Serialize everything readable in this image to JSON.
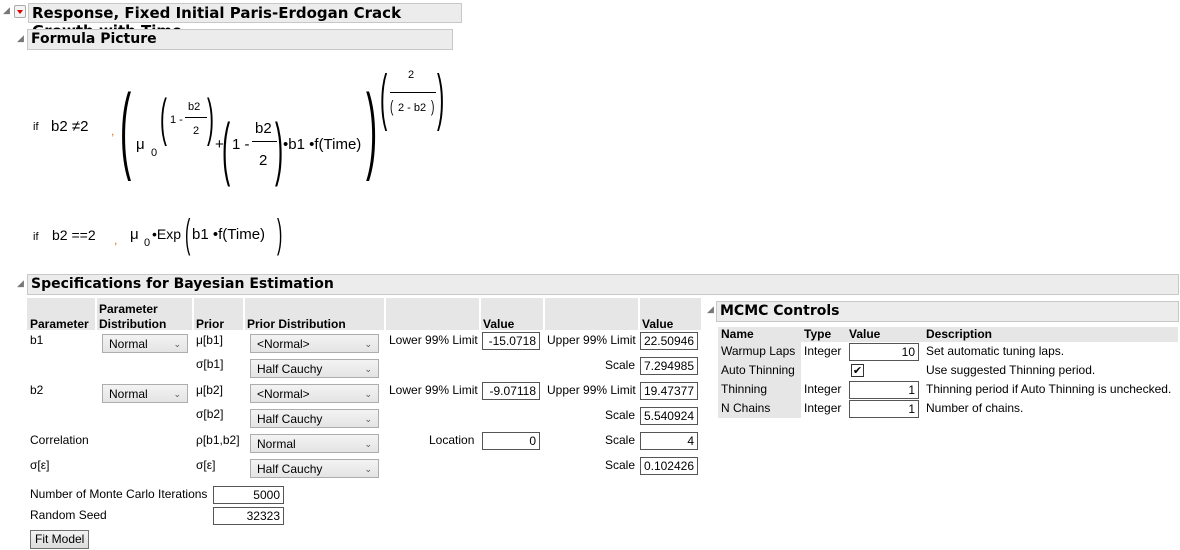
{
  "report": {
    "title": "Response, Fixed Initial Paris-Erdogan Crack Growth with Time"
  },
  "formula": {
    "title": "Formula Picture",
    "line1": {
      "if": "if",
      "cond": "b2 ≠2",
      "comma": ",",
      "mu": "μ",
      "sub0": "0",
      "one_minus_small": "1 -",
      "b2": "b2",
      "two": "2",
      "plus": "+",
      "one_minus": "1 -",
      "mult": "•b1 •f(Time)",
      "exp_num": "2",
      "exp_den": "2 - b2"
    },
    "line2": {
      "if": "if",
      "cond": "b2 ==2",
      "comma": ",",
      "mu": "μ",
      "sub0": "0",
      "exp": "•Exp",
      "arg": "b1 •f(Time)"
    }
  },
  "spec": {
    "title": "Specifications for Bayesian Estimation",
    "headers": {
      "parameter": "Parameter",
      "param_dist_1": "Parameter",
      "param_dist_2": "Distribution",
      "prior": "Prior",
      "prior_dist": "Prior Distribution",
      "value1": "Value",
      "value2": "Value"
    },
    "rows": [
      {
        "param": "b1",
        "pdist": "Normal",
        "prior": "μ[b1]",
        "prior_dist": "<Normal>",
        "l1": "Lower 99% Limit",
        "v1": "-15.0718",
        "l2": "Upper 99% Limit",
        "v2": "22.50946"
      },
      {
        "param": "",
        "prior": "σ[b1]",
        "prior_dist": "Half Cauchy",
        "l2": "Scale",
        "v2": "7.294985"
      },
      {
        "param": "b2",
        "pdist": "Normal",
        "prior": "μ[b2]",
        "prior_dist": "<Normal>",
        "l1": "Lower 99% Limit",
        "v1": "-9.07118",
        "l2": "Upper 99% Limit",
        "v2": "19.47377"
      },
      {
        "param": "",
        "prior": "σ[b2]",
        "prior_dist": "Half Cauchy",
        "l2": "Scale",
        "v2": "5.540924"
      },
      {
        "param": "Correlation",
        "prior": "ρ[b1,b2]",
        "prior_dist": "Normal",
        "l1": "Location",
        "v1": "0",
        "l2": "Scale",
        "v2": "4"
      },
      {
        "param": "σ[ε]",
        "prior": "σ[ε]",
        "prior_dist": "Half Cauchy",
        "l2": "Scale",
        "v2": "0.102426"
      }
    ],
    "iterations_label": "Number of Monte Carlo Iterations",
    "iterations": "5000",
    "seed_label": "Random Seed",
    "seed": "32323",
    "fit_button": "Fit Model"
  },
  "mcmc": {
    "title": "MCMC Controls",
    "headers": {
      "name": "Name",
      "type": "Type",
      "value": "Value",
      "description": "Description"
    },
    "rows": [
      {
        "name": "Warmup Laps",
        "type": "Integer",
        "value": "10",
        "description": "Set automatic tuning laps."
      },
      {
        "name": "Auto Thinning",
        "type": "",
        "checked": true,
        "description": "Use suggested Thinning period."
      },
      {
        "name": "Thinning",
        "type": "Integer",
        "value": "1",
        "description": "Thinning period if Auto Thinning is unchecked."
      },
      {
        "name": "N Chains",
        "type": "Integer",
        "value": "1",
        "description": "Number of chains."
      }
    ]
  },
  "colors": {
    "comma": "#e07020",
    "header_bg": "#ececec",
    "red_triangle": "#dd0000"
  }
}
